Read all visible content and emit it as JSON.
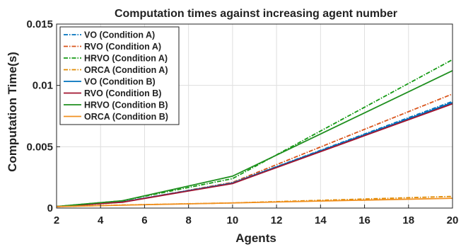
{
  "chart_data": {
    "type": "line",
    "title": "Computation times against increasing agent number",
    "xlabel": "Agents",
    "ylabel": "Computation Time(s)",
    "xlim": [
      2,
      20
    ],
    "ylim": [
      0,
      0.015
    ],
    "xticks": [
      "2",
      "4",
      "6",
      "8",
      "10",
      "12",
      "14",
      "16",
      "18",
      "20"
    ],
    "yticks": [
      "0",
      "0.005",
      "0.01",
      "0.015"
    ],
    "grid": true,
    "legend_position": "top-left",
    "x": [
      2,
      5,
      10,
      20
    ],
    "series": [
      {
        "name": "VO (Condition A)",
        "values": [
          0.00012,
          0.0005,
          0.00205,
          0.0087
        ],
        "color": "#0072BD",
        "dash": true
      },
      {
        "name": "RVO (Condition A)",
        "values": [
          0.00012,
          0.00048,
          0.0021,
          0.0093
        ],
        "color": "#D95319",
        "dash": true
      },
      {
        "name": "HRVO (Condition A)",
        "values": [
          0.00013,
          0.0006,
          0.0024,
          0.0121
        ],
        "color": "#159A15",
        "dash": true
      },
      {
        "name": "ORCA (Condition A)",
        "values": [
          0.00012,
          0.00025,
          0.00042,
          0.00095
        ],
        "color": "#E08A00",
        "dash": true
      },
      {
        "name": "VO (Condition B)",
        "values": [
          0.00012,
          0.0005,
          0.00205,
          0.0086
        ],
        "color": "#0072BD",
        "dash": false
      },
      {
        "name": "RVO (Condition B)",
        "values": [
          0.00012,
          0.00048,
          0.002,
          0.0085
        ],
        "color": "#A2142F",
        "dash": false
      },
      {
        "name": "HRVO (Condition B)",
        "values": [
          0.00013,
          0.0006,
          0.0026,
          0.0112
        ],
        "color": "#1F8F1F",
        "dash": false
      },
      {
        "name": "ORCA (Condition B)",
        "values": [
          0.00012,
          0.00024,
          0.00042,
          0.0008
        ],
        "color": "#F09020",
        "dash": false
      }
    ]
  }
}
